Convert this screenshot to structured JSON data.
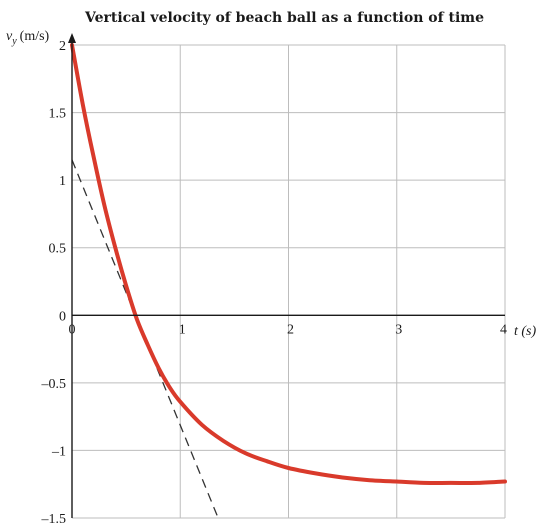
{
  "chart_data": {
    "type": "line",
    "title": "Vertical velocity of beach ball as a function of time",
    "ylabel_symbol": "v",
    "ylabel_subscript": "y",
    "ylabel_units": "(m/s)",
    "xlabel": "t (s)",
    "xlim": [
      0,
      4
    ],
    "ylim": [
      -1.5,
      2
    ],
    "x_ticks": [
      0,
      1,
      2,
      3,
      4
    ],
    "x_tick_labels": [
      "0",
      "1",
      "2",
      "3",
      "4"
    ],
    "y_ticks": [
      2,
      1.5,
      1,
      0.5,
      0,
      -0.5,
      -1,
      -1.5
    ],
    "y_tick_labels": [
      "2",
      "1.5",
      "1",
      "0.5",
      "0",
      "–0.5",
      "–1",
      "–1.5"
    ],
    "grid": true,
    "series": [
      {
        "x": [
          0,
          0.1,
          0.2,
          0.3,
          0.4,
          0.5,
          0.6,
          0.7,
          0.8,
          0.9,
          1.0,
          1.2,
          1.4,
          1.6,
          1.8,
          2.0,
          2.25,
          2.5,
          2.75,
          3.0,
          3.25,
          3.5,
          3.75,
          4.0
        ],
        "y": [
          2.0,
          1.56,
          1.17,
          0.81,
          0.5,
          0.22,
          -0.03,
          -0.22,
          -0.39,
          -0.53,
          -0.64,
          -0.81,
          -0.93,
          -1.02,
          -1.08,
          -1.13,
          -1.17,
          -1.2,
          -1.22,
          -1.23,
          -1.24,
          -1.24,
          -1.24,
          -1.23
        ],
        "color": "#d93a2b"
      }
    ],
    "tangent_line": {
      "x": [
        0,
        1.35
      ],
      "y": [
        1.15,
        -1.5
      ],
      "color": "#333333",
      "style": "dashed"
    }
  }
}
